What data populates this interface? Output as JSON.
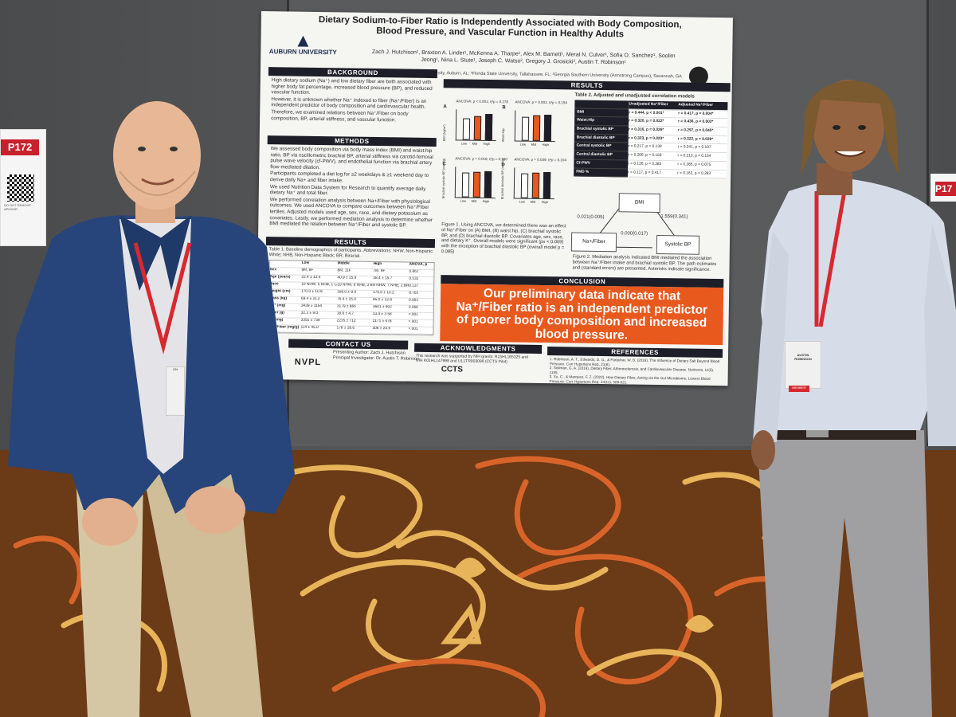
{
  "poster": {
    "title_line1": "Dietary Sodium-to-Fiber Ratio is Independently Associated with Body Composition,",
    "title_line2": "Blood Pressure, and Vascular Function in Healthy Adults",
    "authors_line1": "Zach J. Hutchison¹, Braxton A. Linder¹, McKenna A. Tharpe¹, Alex M. Barnett¹, Meral N. Culver¹, Sofia O. Sanchez¹, Soolim",
    "authors_line2": "Jeong¹, Nina L. Stute¹, Joseph C. Watso², Gregory J. Grosicki³, Austin T. Robinson¹",
    "affiliations_line1": "¹School of Kinesiology, Auburn University, Auburn, AL; ²Florida State University, Tallahassee, FL; ³Georgia Southern University (Armstrong Campus), Savannah, GA",
    "university": "AUBURN UNIVERSITY",
    "headers": {
      "background": "BACKGROUND",
      "methods": "METHODS",
      "results_left": "RESULTS",
      "results_top": "RESULTS",
      "conclusion": "CONCLUSION",
      "contact": "CONTACT US",
      "acknowledgments": "ACKNOWLEDGMENTS",
      "references": "REFERENCES"
    },
    "background_bullets": [
      "High dietary sodium (Na⁺) and low dietary fiber are both associated with higher body fat percentage, increased blood pressure (BP), and reduced vascular function.",
      "However, it is unknown whether Na⁺ indexed to fiber (Na⁺/Fiber) is an independent predictor of body composition and cardiovascular health.",
      "Therefore, we examined relations between Na⁺/Fiber on body composition, BP, arterial stiffness, and vascular function."
    ],
    "methods_bullets": [
      "We assessed body composition via body mass index (BMI) and waist:hip ratio, BP via oscillometric brachial BP, arterial stiffness via carotid-femoral pulse wave velocity (cf-PWV), and endothelial function via brachial artery flow-mediated dilation.",
      "Participants completed a diet log for ≥2 weekdays & ≥1 weekend day to derive daily Na+ and fiber intake.",
      "We used Nutrition Data System for Research to quantify average daily dietary Na⁺ and total fiber.",
      "We performed correlation analysis between Na+/Fiber with physiological outcomes. We used ANCOVA to compare outcomes between Na⁺/Fiber tertiles. Adjusted models used age, sex, race, and dietary potassium as covariates. Lastly, we performed mediation analysis to determine whether BMI mediated the relation between Na⁺/Fiber and systolic BP."
    ],
    "table1_caption": "Table 1. Baseline demographics of participants. Abbreviations: NHW, Non-Hispanic White; NHB, Non-Hispanic Black; BR, Biracial.",
    "table1_header": [
      "",
      "Low",
      "Middle",
      "High",
      "ANOVA, p"
    ],
    "table1_rows": [
      [
        "Sex",
        "9M, 8F",
        "8M, 11F",
        "7M, 9F",
        "0.861"
      ],
      [
        "Age (years)",
        "22.4 ± 12.4",
        "40.9 ± 15.9",
        "28.4 ± 15.7",
        "0.532"
      ],
      [
        "Race",
        "10 NHW, 5 NHB, 1 Latina",
        "10 NHW, 6 NHB, 3 BR",
        "9 NHW, 7 NHB, 2 BR",
        "0.137"
      ],
      [
        "Height (cm)",
        "170.0 ± 10.9",
        "168.0 ± 9.9",
        "170.0 ± 10.2",
        "0.703"
      ],
      [
        "Mass (kg)",
        "69.4 ± 11.2",
        "76.4 ± 15.0",
        "85.0 ± 12.8",
        "0.003"
      ],
      [
        "Na⁺ (mg)",
        "3439 ± 1154",
        "3179 ± 866",
        "3601 ± 902",
        "0.066"
      ],
      [
        "Fiber (g)",
        "32.3 ± 9.0",
        "18.9 ± 4.7",
        "13.4 ± 3.58",
        "<.001"
      ],
      [
        "K⁺ (mg)",
        "3355 ± 739",
        "2235 ± 712",
        "2171 ± 678",
        "<.001"
      ],
      [
        "Na⁺/Fiber (mg/g)",
        "114 ± 45.0",
        "178 ± 28.6",
        "306 ± 24.9",
        "<.001"
      ]
    ],
    "fig1_caption": "Figure 1. Using ANCOVA, we determined there was an effect of Na⁺/Fiber on (A) BMI, (B) waist:hip, (C) brachial systolic BP, and (D) brachial diastolic BP. Covariates age, sex, race, and dietary K⁺. Overall models were significant (ps < 0.009) with the exception of brachial diastolic BP (overall model p = 0.085)",
    "fig_panels": {
      "a": {
        "label": "A",
        "stat": "ANCOVA: p < 0.001; η²p = 0.278",
        "ylabel": "BMI (kg/m²)"
      },
      "b": {
        "label": "B",
        "stat": "ANCOVA: p = 0.001; η²p = 0.194",
        "ylabel": "Waist:Hip"
      },
      "c": {
        "label": "C",
        "stat": "ANCOVA: p = 0.016; η²p = 0.180",
        "ylabel": "Brachial systolic BP (mmHg)"
      },
      "d": {
        "label": "D",
        "stat": "ANCOVA: p = 0.039; η²p = 0.104",
        "ylabel": "Brachial diastolic BP (mmHg)"
      },
      "x_categories": [
        "Low",
        "Mid",
        "High"
      ]
    },
    "table2_caption": "Table 2. Adjusted and unadjusted correlation models",
    "table2_header": [
      "",
      "Unadjusted Na⁺/Fiber",
      "Adjusted Na⁺/Fiber"
    ],
    "table2_rows": [
      [
        "BMI",
        "r = 0.444, p < 0.001*",
        "r = 0.417, p = 0.004*"
      ],
      [
        "Waist:Hip",
        "r = 0.320, p = 0.022*",
        "r = 0.436, p = 0.002*"
      ],
      [
        "Brachial systolic BP",
        "r = 0.316, p = 0.026*",
        "r = 0.297, p = 0.045*"
      ],
      [
        "Brachial diastolic BP",
        "r = 0.323, p = 0.023*",
        "r = 0.322, p = 0.029*"
      ],
      [
        "Central systolic BP",
        "r = 0.217, p = 0.130",
        "r = 0.241, p = 0.107"
      ],
      [
        "Central diastolic BP",
        "r = 0.206, p = 0.150",
        "r = 0.213, p = 0.154"
      ],
      [
        "Cf-PWV",
        "r = 0.126, p = 0.383",
        "r = 0.265, p = 0.075"
      ],
      [
        "FMD %",
        "r = 0.117, p = 0.417",
        "r = 0.162, p = 0.283"
      ]
    ],
    "mediation": {
      "bmi": "BMI",
      "exposure": "Na+/Fiber",
      "outcome": "Systolic BP",
      "path_a": "0.021(0.005)",
      "path_b": "1.559(0.341)",
      "path_c": "0.000(0.017)"
    },
    "fig2_caption": "Figure 2. Mediation analysis indicated BMI mediated the association between Na⁺/Fiber intake and brachial systolic BP. The path estimates and (standard errors) are presented. Asterisks indicate significance.",
    "conclusion_line1": "Our preliminary data indicate that",
    "conclusion_line2": "Na⁺/Fiber ratio is an independent predictor",
    "conclusion_line3": "of poorer body composition and increased",
    "conclusion_line4": "blood pressure.",
    "contact_line1": "Presenting Author: Zach J. Hutchison",
    "contact_line2": "Principal Investigator: Dr. Austin T. Robinson",
    "contact_logo": "NVPL",
    "ack_line1": "This research was supported by NIH grants: R15HL165325 and",
    "ack_line2": "NIH K01HL147998 and UL1TR003096 (CCTS Pilot)",
    "ack_logo": "CCTS",
    "references": [
      "1. Robinson, A. T., Edwards, D. G., & Farquhar, W. B. (2019). The Influence of Dietary Salt Beyond Blood Pressure. Curr Hypertens Rep, 21(6).",
      "2. Soliman, G. A. (2019). Dietary Fiber, Atherosclerosis, and Cardiovascular Disease. Nutrients, 11(5), 1155.",
      "3. Xu, C., & Marques, F. Z. (2022). How Dietary Fibre, Acting via the Gut Microbiome, Lowers Blood Pressure. Curr Hypertens Rep, 24(11), 509-521."
    ]
  },
  "signs": {
    "left_number": "P172",
    "left_note_line1": "DO NOT REMOVE",
    "left_note_line2": "APHSOR",
    "right_number": "P17"
  },
  "badges": {
    "left_badge": "ON",
    "right_badge_line1": "AUSTIN",
    "right_badge_line2": "ROBINSON",
    "right_badge_tag": "MEMBER"
  },
  "colors": {
    "poster_orange": "#e8591e",
    "poster_dark": "#1e1e28",
    "lanyard_red": "#d8282f",
    "carpet_brown": "#6b3a16",
    "carpet_orange": "#d8642a",
    "carpet_gold": "#e8b45a"
  },
  "chart_data": [
    {
      "type": "bar",
      "title": "",
      "categories": [
        "Low",
        "Mid",
        "High"
      ],
      "values": [
        25,
        28,
        31
      ],
      "ylabel": "BMI (kg/m²)"
    },
    {
      "type": "bar",
      "title": "",
      "categories": [
        "Low",
        "Mid",
        "High"
      ],
      "values": [
        0.78,
        0.82,
        0.86
      ],
      "ylabel": "Waist:Hip"
    },
    {
      "type": "bar",
      "title": "",
      "categories": [
        "Low",
        "Mid",
        "High"
      ],
      "values": [
        115,
        120,
        126
      ],
      "ylabel": "Brachial systolic BP (mmHg)"
    },
    {
      "type": "bar",
      "title": "",
      "categories": [
        "Low",
        "Mid",
        "High"
      ],
      "values": [
        68,
        70,
        74
      ],
      "ylabel": "Brachial diastolic BP (mmHg)"
    }
  ]
}
